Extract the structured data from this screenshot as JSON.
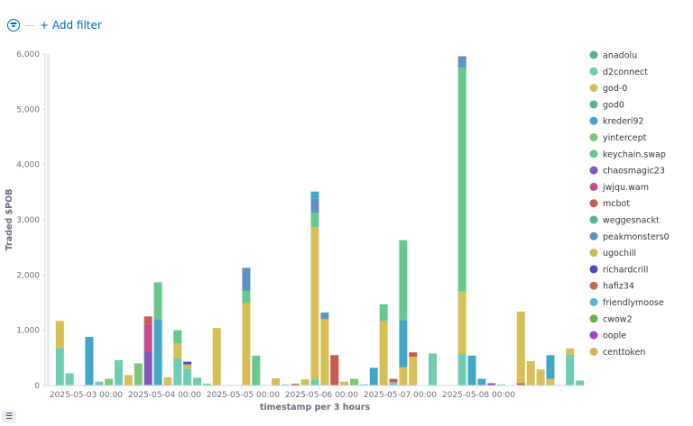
{
  "filter": {
    "icon": "filter-icon",
    "add_label": "+ Add filter"
  },
  "colors": {
    "anadolu": "#54b399",
    "d2connect": "#6dccb1",
    "god-0": "#d6bf57",
    "god0": "#54b399",
    "kre": "#40a8c4",
    "yin": "#7fc67b",
    "keychain": "#65c98f",
    "chaos": "#8458be",
    "jwjqu": "#c44d8e",
    "mcbot": "#c85a50",
    "weg": "#54b399",
    "peak": "#6092c0",
    "ugo": "#c8c04a",
    "rich": "#4a4dbf",
    "hafiz": "#c46b4a",
    "friendly": "#5eb5d3",
    "cwow2": "#60b844",
    "oople": "#9b42c9",
    "cent": "#d3b461"
  },
  "legend_toggle_icon": "list-icon",
  "chart_data": {
    "type": "bar",
    "stacked": true,
    "xlabel": "timestamp per 3 hours",
    "ylabel": "Traded $POB",
    "ylim": [
      0,
      6000
    ],
    "yticks": [
      "0",
      "1,000",
      "2,000",
      "3,000",
      "4,000",
      "5,000",
      "6,000"
    ],
    "ytick_values": [
      0,
      1000,
      2000,
      3000,
      4000,
      5000,
      6000
    ],
    "xrange": [
      0,
      46
    ],
    "xticks": [
      {
        "x": 4,
        "label": "2025-05-03 00:00"
      },
      {
        "x": 12,
        "label": "2025-05-04 00:00"
      },
      {
        "x": 20,
        "label": "2025-05-05 00:00"
      },
      {
        "x": 28,
        "label": "2025-05-06 00:00"
      },
      {
        "x": 36,
        "label": "2025-05-07 00:00"
      },
      {
        "x": 44,
        "label": "2025-05-08 00:00"
      }
    ],
    "grid": false,
    "legend_position": "right",
    "legend": [
      {
        "name": "anadolu",
        "color": "#54b399"
      },
      {
        "name": "d2connect",
        "color": "#6dccb1"
      },
      {
        "name": "god-0",
        "color": "#d6bf57"
      },
      {
        "name": "god0",
        "color": "#54b399"
      },
      {
        "name": "krederi92",
        "color": "#40a8c4"
      },
      {
        "name": "yintercept",
        "color": "#7fc67b"
      },
      {
        "name": "keychain.swap",
        "color": "#65c98f"
      },
      {
        "name": "chaosmagic23",
        "color": "#8458be"
      },
      {
        "name": "jwjqu.wam",
        "color": "#c44d8e"
      },
      {
        "name": "mcbot",
        "color": "#c85a50"
      },
      {
        "name": "weggesnackt",
        "color": "#54b399"
      },
      {
        "name": "peakmonsters0",
        "color": "#6092c0"
      },
      {
        "name": "ugochill",
        "color": "#c8c04a"
      },
      {
        "name": "richardcrill",
        "color": "#4a4dbf"
      },
      {
        "name": "hafiz34",
        "color": "#c46b4a"
      },
      {
        "name": "friendlymoose",
        "color": "#5eb5d3"
      },
      {
        "name": "cwow2",
        "color": "#60b844"
      },
      {
        "name": "oople",
        "color": "#9b42c9"
      },
      {
        "name": "centtoken",
        "color": "#d3b461"
      }
    ],
    "bars": [
      {
        "x": 1,
        "segments": [
          {
            "v": 680,
            "c": "d2connect"
          },
          {
            "v": 490,
            "c": "god-0"
          }
        ]
      },
      {
        "x": 2,
        "segments": [
          {
            "v": 220,
            "c": "d2connect"
          }
        ]
      },
      {
        "x": 4,
        "segments": [
          {
            "v": 880,
            "c": "kre"
          }
        ]
      },
      {
        "x": 5,
        "segments": [
          {
            "v": 70,
            "c": "d2connect"
          }
        ]
      },
      {
        "x": 6,
        "segments": [
          {
            "v": 120,
            "c": "yin"
          }
        ]
      },
      {
        "x": 7,
        "segments": [
          {
            "v": 460,
            "c": "d2connect"
          }
        ]
      },
      {
        "x": 8,
        "segments": [
          {
            "v": 190,
            "c": "god-0"
          }
        ]
      },
      {
        "x": 9,
        "segments": [
          {
            "v": 400,
            "c": "yin"
          }
        ]
      },
      {
        "x": 10,
        "segments": [
          {
            "v": 620,
            "c": "chaos"
          },
          {
            "v": 500,
            "c": "jwjqu"
          },
          {
            "v": 130,
            "c": "mcbot"
          }
        ]
      },
      {
        "x": 11,
        "segments": [
          {
            "v": 1200,
            "c": "kre"
          },
          {
            "v": 670,
            "c": "keychain"
          }
        ]
      },
      {
        "x": 12,
        "segments": [
          {
            "v": 150,
            "c": "god-0"
          }
        ]
      },
      {
        "x": 13,
        "segments": [
          {
            "v": 490,
            "c": "d2connect"
          },
          {
            "v": 270,
            "c": "god-0"
          },
          {
            "v": 240,
            "c": "keychain"
          }
        ]
      },
      {
        "x": 14,
        "segments": [
          {
            "v": 300,
            "c": "d2connect"
          },
          {
            "v": 80,
            "c": "god-0"
          },
          {
            "v": 50,
            "c": "rich"
          }
        ]
      },
      {
        "x": 15,
        "segments": [
          {
            "v": 140,
            "c": "d2connect"
          }
        ]
      },
      {
        "x": 16,
        "segments": [
          {
            "v": 30,
            "c": "d2connect"
          }
        ]
      },
      {
        "x": 17,
        "segments": [
          {
            "v": 1040,
            "c": "god-0"
          }
        ]
      },
      {
        "x": 20,
        "segments": [
          {
            "v": 1490,
            "c": "god-0"
          },
          {
            "v": 220,
            "c": "keychain"
          },
          {
            "v": 420,
            "c": "peak"
          }
        ]
      },
      {
        "x": 21,
        "segments": [
          {
            "v": 540,
            "c": "keychain"
          }
        ]
      },
      {
        "x": 23,
        "segments": [
          {
            "v": 130,
            "c": "god-0"
          }
        ]
      },
      {
        "x": 24,
        "segments": [
          {
            "v": 20,
            "c": "d2connect"
          }
        ]
      },
      {
        "x": 25,
        "segments": [
          {
            "v": 30,
            "c": "mcbot"
          }
        ]
      },
      {
        "x": 26,
        "segments": [
          {
            "v": 110,
            "c": "god-0"
          }
        ]
      },
      {
        "x": 27,
        "segments": [
          {
            "v": 110,
            "c": "d2connect"
          },
          {
            "v": 2760,
            "c": "god-0"
          },
          {
            "v": 260,
            "c": "keychain"
          },
          {
            "v": 250,
            "c": "peak"
          },
          {
            "v": 130,
            "c": "kre"
          }
        ]
      },
      {
        "x": 28,
        "segments": [
          {
            "v": 1200,
            "c": "god-0"
          },
          {
            "v": 120,
            "c": "peak"
          }
        ]
      },
      {
        "x": 29,
        "segments": [
          {
            "v": 550,
            "c": "mcbot"
          }
        ]
      },
      {
        "x": 30,
        "segments": [
          {
            "v": 70,
            "c": "god-0"
          }
        ]
      },
      {
        "x": 31,
        "segments": [
          {
            "v": 120,
            "c": "yin"
          }
        ]
      },
      {
        "x": 32,
        "segments": [
          {
            "v": 20,
            "c": "d2connect"
          }
        ]
      },
      {
        "x": 33,
        "segments": [
          {
            "v": 320,
            "c": "kre"
          }
        ]
      },
      {
        "x": 34,
        "segments": [
          {
            "v": 1170,
            "c": "god-0"
          },
          {
            "v": 300,
            "c": "keychain"
          }
        ]
      },
      {
        "x": 35,
        "segments": [
          {
            "v": 60,
            "c": "d2connect"
          },
          {
            "v": 60,
            "c": "mcbot"
          }
        ]
      },
      {
        "x": 36,
        "segments": [
          {
            "v": 330,
            "c": "god-0"
          },
          {
            "v": 850,
            "c": "kre"
          },
          {
            "v": 1450,
            "c": "keychain"
          }
        ]
      },
      {
        "x": 37,
        "segments": [
          {
            "v": 520,
            "c": "god-0"
          },
          {
            "v": 80,
            "c": "mcbot"
          }
        ]
      },
      {
        "x": 39,
        "segments": [
          {
            "v": 580,
            "c": "d2connect"
          }
        ]
      },
      {
        "x": 42,
        "segments": [
          {
            "v": 570,
            "c": "d2connect"
          },
          {
            "v": 1130,
            "c": "god-0"
          },
          {
            "v": 4050,
            "c": "keychain"
          },
          {
            "v": 210,
            "c": "peak"
          }
        ]
      },
      {
        "x": 43,
        "segments": [
          {
            "v": 540,
            "c": "kre"
          }
        ]
      },
      {
        "x": 44,
        "segments": [
          {
            "v": 120,
            "c": "kre"
          }
        ]
      },
      {
        "x": 45,
        "segments": [
          {
            "v": 40,
            "c": "oople"
          }
        ]
      },
      {
        "x": 46,
        "segments": [
          {
            "v": 20,
            "c": "d2connect"
          }
        ]
      },
      {
        "x": 48,
        "segments": [
          {
            "v": 40,
            "c": "mcbot"
          },
          {
            "v": 1300,
            "c": "god-0"
          }
        ]
      },
      {
        "x": 49,
        "segments": [
          {
            "v": 440,
            "c": "god-0"
          }
        ]
      },
      {
        "x": 50,
        "segments": [
          {
            "v": 290,
            "c": "god-0"
          }
        ]
      },
      {
        "x": 51,
        "segments": [
          {
            "v": 120,
            "c": "god-0"
          },
          {
            "v": 430,
            "c": "kre"
          }
        ]
      },
      {
        "x": 53,
        "segments": [
          {
            "v": 560,
            "c": "d2connect"
          },
          {
            "v": 110,
            "c": "god-0"
          }
        ]
      },
      {
        "x": 54,
        "segments": [
          {
            "v": 90,
            "c": "d2connect"
          }
        ]
      }
    ]
  }
}
